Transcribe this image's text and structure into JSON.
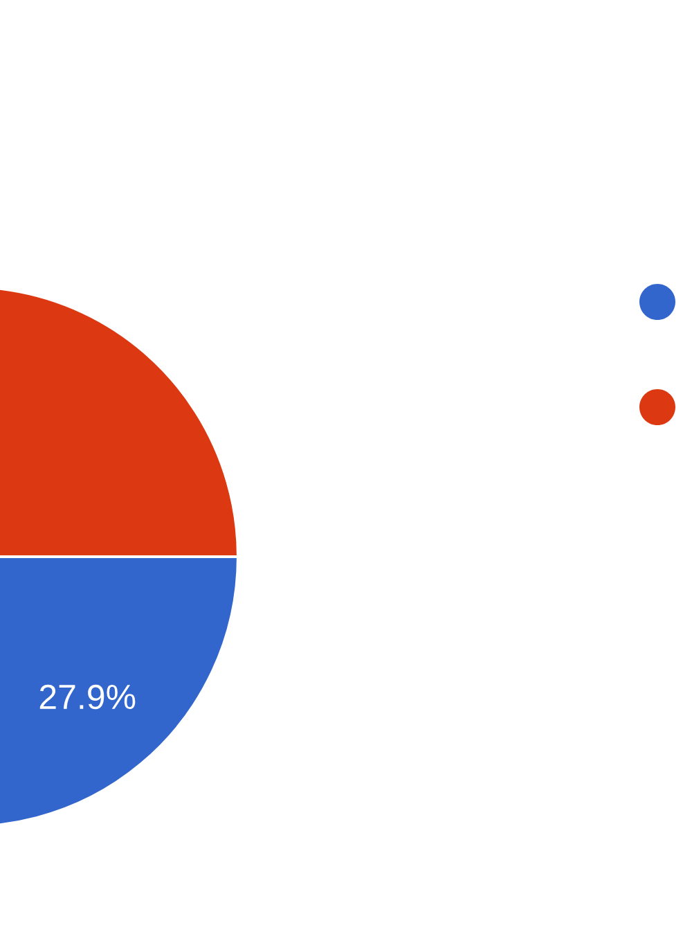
{
  "chart_data": {
    "type": "pie",
    "categories": [
      null,
      null
    ],
    "values": [
      27.9,
      72.1
    ],
    "colors": [
      "#3366cc",
      "#dc3912"
    ],
    "value_labels": [
      "27.9%",
      null
    ]
  }
}
